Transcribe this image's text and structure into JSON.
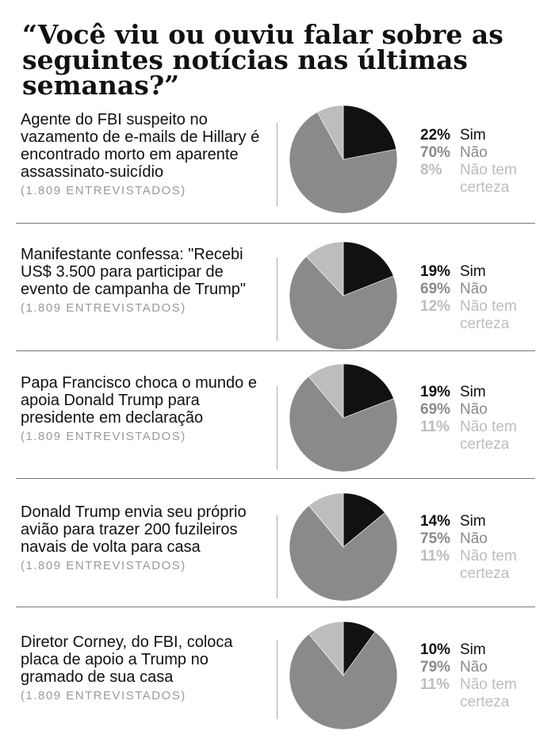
{
  "title": "“Você viu ou ouviu falar sobre as seguintes notícias nas últimas semanas?”",
  "colors": {
    "sim": "#111111",
    "nao": "#8a8a8a",
    "nao_tem_certeza": "#bdbdbd"
  },
  "chart_data": [
    {
      "type": "pie",
      "title": "Agente do FBI suspeito no vazamento de e-mails de Hillary é encontrado morto em aparente assassinato-suicídio",
      "subtitle": "(1.809 ENTREVISTADOS)",
      "labels": [
        "Sim",
        "Não",
        "Não tem certeza"
      ],
      "values": [
        22,
        70,
        8
      ],
      "value_labels": [
        "22%",
        "70%",
        "8%"
      ]
    },
    {
      "type": "pie",
      "title": "Manifestante confessa: \"Recebi US$ 3.500 para participar de evento de campanha de Trump\"",
      "subtitle": "(1.809 ENTREVISTADOS)",
      "labels": [
        "Sim",
        "Não",
        "Não tem certeza"
      ],
      "values": [
        19,
        69,
        12
      ],
      "value_labels": [
        "19%",
        "69%",
        "12%"
      ]
    },
    {
      "type": "pie",
      "title": "Papa Francisco choca o mundo e apoia Donald Trump para presidente em declaração",
      "subtitle": "(1.809 ENTREVISTADOS)",
      "labels": [
        "Sim",
        "Não",
        "Não tem certeza"
      ],
      "values": [
        19,
        69,
        11
      ],
      "value_labels": [
        "19%",
        "69%",
        "11%"
      ]
    },
    {
      "type": "pie",
      "title": "Donald Trump envia seu próprio avião para trazer 200 fuzileiros navais de volta para casa",
      "subtitle": "(1.809 ENTREVISTADOS)",
      "labels": [
        "Sim",
        "Não",
        "Não tem certeza"
      ],
      "values": [
        14,
        75,
        11
      ],
      "value_labels": [
        "14%",
        "75%",
        "11%"
      ]
    },
    {
      "type": "pie",
      "title": "Diretor Corney, do FBI, coloca placa de apoio a Trump no gramado de sua casa",
      "subtitle": "(1.809 ENTREVISTADOS)",
      "labels": [
        "Sim",
        "Não",
        "Não tem certeza"
      ],
      "values": [
        10,
        79,
        11
      ],
      "value_labels": [
        "10%",
        "79%",
        "11%"
      ]
    }
  ]
}
